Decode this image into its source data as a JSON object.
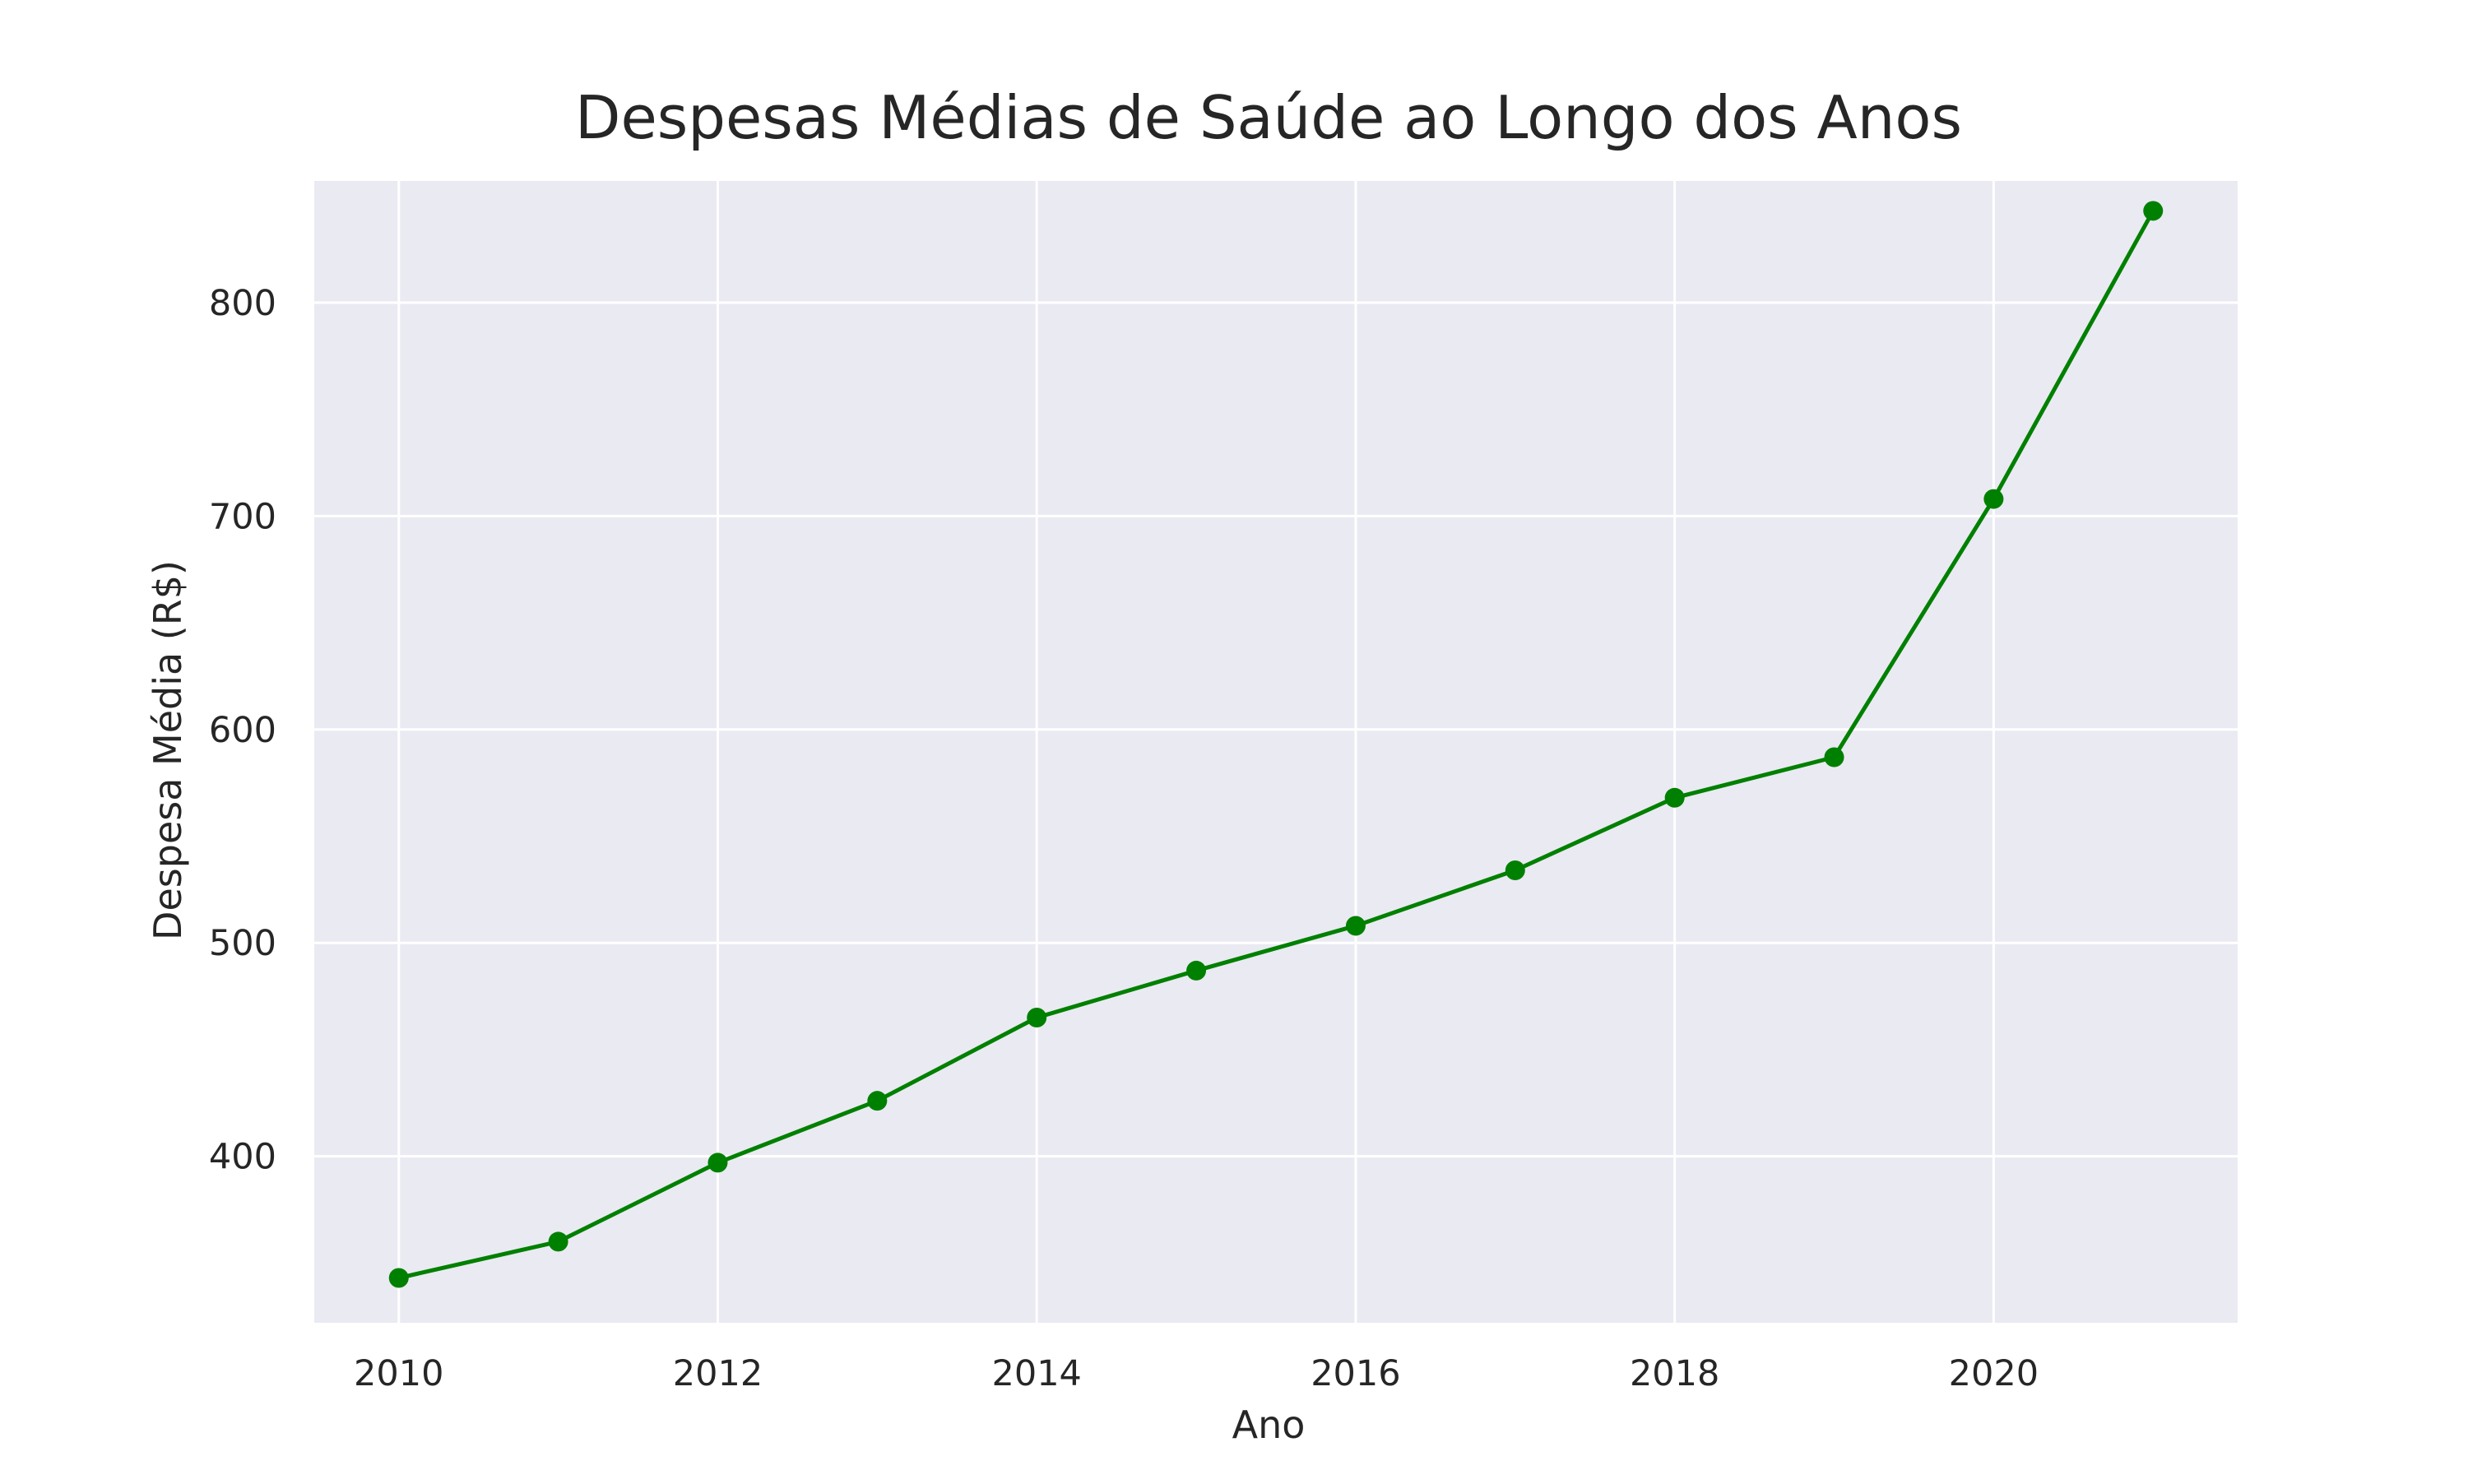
{
  "chart_data": {
    "type": "line",
    "title": "Despesas Médias de Saúde ao Longo dos Anos",
    "xlabel": "Ano",
    "ylabel": "Despesa Média (R$)",
    "x": [
      2010,
      2011,
      2012,
      2013,
      2014,
      2015,
      2016,
      2017,
      2018,
      2019,
      2020,
      2021
    ],
    "series": [
      {
        "values": [
          343,
          360,
          397,
          426,
          465,
          487,
          508,
          534,
          568,
          587,
          708,
          843
        ]
      }
    ],
    "xlim": [
      2009.47,
      2021.53
    ],
    "ylim": [
      322,
      857
    ],
    "xticks": [
      2010,
      2012,
      2014,
      2016,
      2018,
      2020
    ],
    "yticks": [
      400,
      500,
      600,
      700,
      800
    ],
    "grid": true,
    "colors": {
      "line": "#008000",
      "plot_background": "#eaeaf2",
      "grid": "#ffffff"
    }
  }
}
